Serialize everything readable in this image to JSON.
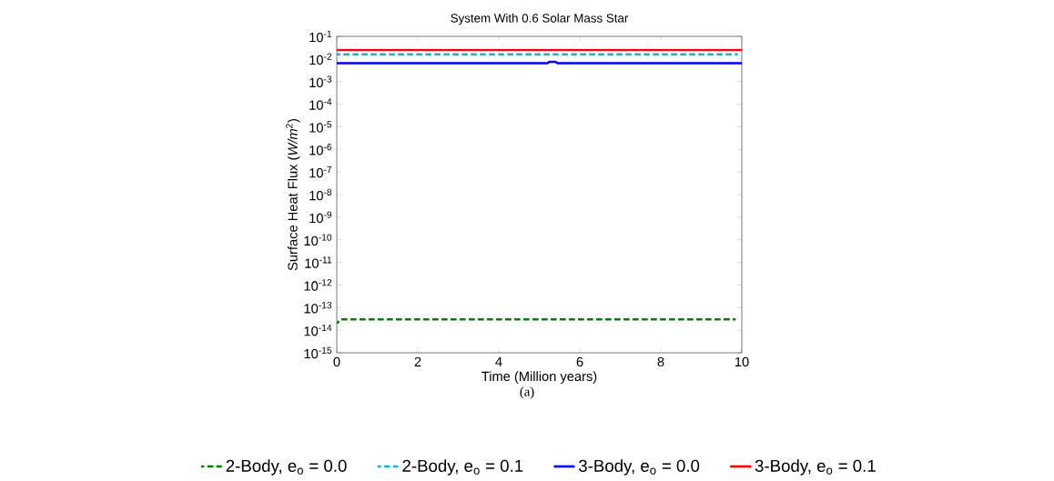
{
  "chart_data": {
    "type": "line",
    "title": "System With 0.6 Solar Mass Star",
    "xlabel": "Time  (Million years)",
    "ylabel": "Surface Heat Flux  (*W/m*$^{2}$)",
    "log": "y",
    "legend": "bottom",
    "grid": false,
    "xlim": [
      0,
      10
    ],
    "xticks": [
      0,
      2,
      4,
      6,
      8,
      10
    ],
    "ylim": [
      1e-15,
      0.1
    ],
    "yticks": [
      {
        "value": 1e-15,
        "label": "10$^{-15}$"
      },
      {
        "value": 1e-14,
        "label": "10$^{-14}$"
      },
      {
        "value": 1e-13,
        "label": "10$^{-13}$"
      },
      {
        "value": 1e-12,
        "label": "10$^{-12}$"
      },
      {
        "value": 1e-11,
        "label": "10$^{-11}$"
      },
      {
        "value": 1e-10,
        "label": "10$^{-10}$"
      },
      {
        "value": 1e-09,
        "label": "10$^{-9}$"
      },
      {
        "value": 1e-08,
        "label": "10$^{-8}$"
      },
      {
        "value": 1e-07,
        "label": "10$^{-7}$"
      },
      {
        "value": 1e-06,
        "label": "10$^{-6}$"
      },
      {
        "value": 1e-05,
        "label": "10$^{-5}$"
      },
      {
        "value": 0.0001,
        "label": "10$^{-4}$"
      },
      {
        "value": 0.001,
        "label": "10$^{-3}$"
      },
      {
        "value": 0.01,
        "label": "10$^{-2}$"
      },
      {
        "value": 0.1,
        "label": "10$^{-1}$"
      }
    ],
    "annotations": [
      "(a)"
    ],
    "series": [
      {
        "name": "2-Body, e$_{o}$ = 0.0",
        "color": "#007f00",
        "line_style": "dashed",
        "x": [
          0,
          0.1,
          9.85
        ],
        "values": [
          2e-14,
          3e-14,
          3e-14
        ]
      },
      {
        "name": "2-Body, e$_{o}$ = 0.1",
        "color": "#20b0c8",
        "line_style": "dashed",
        "x": [
          0,
          9.9
        ],
        "values": [
          0.016,
          0.016
        ]
      },
      {
        "name": "3-Body, e$_{o}$ = 0.0",
        "color": "#0000ff",
        "line_style": "solid",
        "x": [
          0,
          5.2,
          5.25,
          5.4,
          5.45,
          10
        ],
        "values": [
          0.0065,
          0.0065,
          0.0075,
          0.0075,
          0.0065,
          0.0065
        ]
      },
      {
        "name": "3-Body, e$_{o}$ = 0.1",
        "color": "#ff0000",
        "line_style": "solid",
        "x": [
          0,
          10
        ],
        "values": [
          0.025,
          0.025
        ]
      }
    ]
  }
}
